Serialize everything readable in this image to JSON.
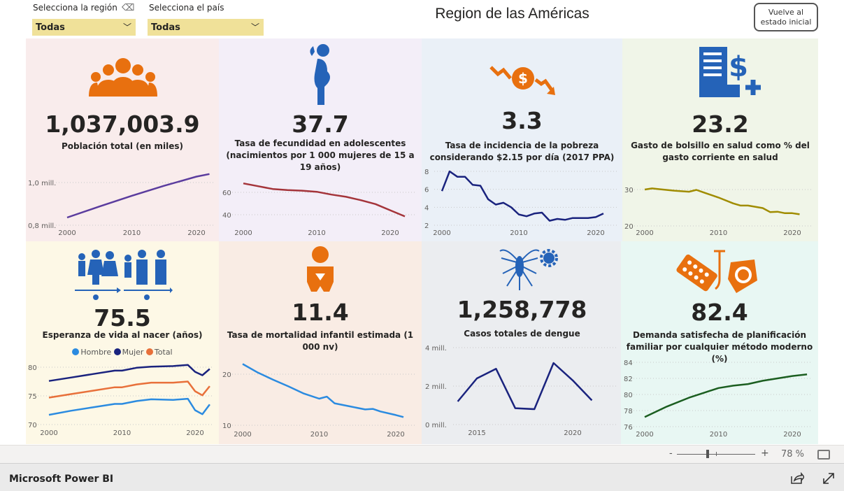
{
  "header": {
    "region_filter": {
      "label": "Selecciona la región",
      "value": "Todas"
    },
    "country_filter": {
      "label": "Selecciona el país",
      "value": "Todas"
    },
    "title": "Region de las Américas",
    "reset_button": "Vuelve al estado inicial"
  },
  "tiles": [
    {
      "value": "1,037,003.9",
      "label": "Población total (en miles)",
      "color": "#f9ecec",
      "icon": "people-group-icon"
    },
    {
      "value": "37.7",
      "label": "Tasa de fecundidad en adolescentes (nacimientos por 1 000 mujeres de 15 a 19 años)",
      "color": "#f3eef8",
      "icon": "pregnant-woman-icon"
    },
    {
      "value": "3.3",
      "label": "Tasa de incidencia de la pobreza considerando $2.15 por día (2017 PPA)",
      "color": "#eaf0f7",
      "icon": "money-down-icon"
    },
    {
      "value": "23.2",
      "label": "Gasto de bolsillo en salud como % del gasto corriente en salud",
      "color": "#f0f5e8",
      "icon": "health-bill-icon"
    },
    {
      "value": "75.5",
      "label": "Esperanza de vida al nacer (años)",
      "color": "#fdf8e6",
      "icon": "life-stages-icon"
    },
    {
      "value": "11.4",
      "label": "Tasa de mortalidad infantil estimada (1 000 nv)",
      "color": "#f9ece4",
      "icon": "baby-icon"
    },
    {
      "value": "1,258,778",
      "label": "Casos totales de dengue",
      "color": "#ebedf0",
      "icon": "mosquito-icon"
    },
    {
      "value": "82.4",
      "label": "Demanda satisfecha de planificación familiar por cualquier método moderno (%)",
      "color": "#e8f7f3",
      "icon": "contraceptives-icon"
    }
  ],
  "legend": [
    {
      "name": "Hombre",
      "color": "#2b8be0"
    },
    {
      "name": "Mujer",
      "color": "#1a237e"
    },
    {
      "name": "Total",
      "color": "#e8703a"
    }
  ],
  "chart_data": [
    {
      "type": "line",
      "id": "poblacion",
      "xticks": [
        "2000",
        "2010",
        "2020"
      ],
      "yticks": [
        {
          "v": 1.0,
          "t": "1,0 mill."
        },
        {
          "v": 0.8,
          "t": "0,8 mill."
        }
      ],
      "series": [
        {
          "name": "Población",
          "color": "#5b3c9e",
          "x": [
            2000,
            2005,
            2010,
            2015,
            2020,
            2022
          ],
          "y": [
            0.836,
            0.888,
            0.938,
            0.985,
            1.028,
            1.04
          ]
        }
      ]
    },
    {
      "type": "line",
      "id": "fecundidad",
      "xticks": [
        "2000",
        "2010",
        "2020"
      ],
      "yticks": [
        {
          "v": 60,
          "t": "60"
        },
        {
          "v": 40,
          "t": "40"
        }
      ],
      "series": [
        {
          "name": "Fecundidad",
          "color": "#a4343a",
          "x": [
            2000,
            2002,
            2004,
            2006,
            2008,
            2010,
            2012,
            2014,
            2016,
            2018,
            2020,
            2022
          ],
          "y": [
            68,
            65.5,
            63,
            62,
            61.5,
            60.5,
            58,
            56,
            53,
            49.5,
            44,
            38.5
          ]
        }
      ]
    },
    {
      "type": "line",
      "id": "pobreza",
      "xticks": [
        "2000",
        "2010",
        "2020"
      ],
      "yticks": [
        {
          "v": 8,
          "t": "8"
        },
        {
          "v": 6,
          "t": "6"
        },
        {
          "v": 4,
          "t": "4"
        },
        {
          "v": 2,
          "t": "2"
        }
      ],
      "series": [
        {
          "name": "Pobreza",
          "color": "#1a237e",
          "x": [
            2000,
            2001,
            2002,
            2003,
            2004,
            2005,
            2006,
            2007,
            2008,
            2009,
            2010,
            2011,
            2012,
            2013,
            2014,
            2015,
            2016,
            2017,
            2018,
            2019,
            2020,
            2021
          ],
          "y": [
            5.8,
            8,
            7.4,
            7.4,
            6.5,
            6.4,
            4.9,
            4.3,
            4.5,
            4.0,
            3.2,
            3.0,
            3.3,
            3.4,
            2.5,
            2.7,
            2.6,
            2.8,
            2.8,
            2.8,
            2.9,
            3.3
          ]
        }
      ]
    },
    {
      "type": "line",
      "id": "gasto",
      "xticks": [
        "2000",
        "2010",
        "2020"
      ],
      "yticks": [
        {
          "v": 30,
          "t": "30"
        },
        {
          "v": 20,
          "t": "20"
        }
      ],
      "series": [
        {
          "name": "Gasto",
          "color": "#a08c00",
          "x": [
            2000,
            2001,
            2002,
            2004,
            2006,
            2007,
            2008,
            2010,
            2012,
            2013,
            2014,
            2016,
            2017,
            2018,
            2019,
            2020,
            2021
          ],
          "y": [
            30,
            30.3,
            30.1,
            29.7,
            29.4,
            29.9,
            29.2,
            27.8,
            26.2,
            25.6,
            25.6,
            24.9,
            23.8,
            23.9,
            23.5,
            23.5,
            23.2
          ]
        }
      ]
    },
    {
      "type": "line",
      "id": "esperanza",
      "xticks": [
        "2000",
        "2010",
        "2020"
      ],
      "yticks": [
        {
          "v": 80,
          "t": "80"
        },
        {
          "v": 75,
          "t": "75"
        },
        {
          "v": 70,
          "t": "70"
        }
      ],
      "series": [
        {
          "name": "Mujer",
          "color": "#1a237e",
          "x": [
            2000,
            2003,
            2006,
            2009,
            2010,
            2012,
            2014,
            2017,
            2019,
            2020,
            2021,
            2022
          ],
          "y": [
            77.6,
            78.2,
            78.8,
            79.4,
            79.4,
            79.9,
            80.1,
            80.2,
            80.4,
            79.2,
            78.6,
            79.7
          ]
        },
        {
          "name": "Total",
          "color": "#e8703a",
          "x": [
            2000,
            2003,
            2006,
            2009,
            2010,
            2012,
            2014,
            2017,
            2019,
            2020,
            2021,
            2022
          ],
          "y": [
            74.7,
            75.3,
            75.9,
            76.5,
            76.5,
            77,
            77.3,
            77.3,
            77.5,
            75.8,
            75.1,
            76.7
          ]
        },
        {
          "name": "Hombre",
          "color": "#2b8be0",
          "x": [
            2000,
            2003,
            2006,
            2009,
            2010,
            2012,
            2014,
            2017,
            2019,
            2020,
            2021,
            2022
          ],
          "y": [
            71.7,
            72.4,
            73,
            73.6,
            73.6,
            74.1,
            74.4,
            74.3,
            74.5,
            72.5,
            71.8,
            73.5
          ]
        }
      ]
    },
    {
      "type": "line",
      "id": "mortalidad",
      "xticks": [
        "2000",
        "2010",
        "2020"
      ],
      "yticks": [
        {
          "v": 20,
          "t": "20"
        },
        {
          "v": 10,
          "t": "10"
        }
      ],
      "series": [
        {
          "name": "Mortalidad",
          "color": "#2b8be0",
          "x": [
            2000,
            2002,
            2004,
            2006,
            2008,
            2010,
            2011,
            2012,
            2014,
            2016,
            2017,
            2018,
            2020,
            2021
          ],
          "y": [
            22,
            20.3,
            18.9,
            17.6,
            16.2,
            15.2,
            15.6,
            14.3,
            13.7,
            13.1,
            13.2,
            12.7,
            12,
            11.6
          ]
        }
      ]
    },
    {
      "type": "line",
      "id": "dengue",
      "xticks": [
        "2015",
        "2020"
      ],
      "yticks": [
        {
          "v": 4,
          "t": "4 mill."
        },
        {
          "v": 2,
          "t": "2 mill."
        },
        {
          "v": 0,
          "t": "0 mill."
        }
      ],
      "series": [
        {
          "name": "Dengue",
          "color": "#1a237e",
          "x": [
            2014,
            2015,
            2016,
            2017,
            2018,
            2019,
            2020,
            2021
          ],
          "y": [
            1.2,
            2.4,
            2.9,
            0.85,
            0.8,
            3.2,
            2.3,
            1.26
          ]
        }
      ]
    },
    {
      "type": "line",
      "id": "planificacion",
      "xticks": [
        "2000",
        "2010",
        "2020"
      ],
      "yticks": [
        {
          "v": 84,
          "t": "84"
        },
        {
          "v": 82,
          "t": "82"
        },
        {
          "v": 80,
          "t": "80"
        },
        {
          "v": 78,
          "t": "78"
        },
        {
          "v": 76,
          "t": "76"
        }
      ],
      "series": [
        {
          "name": "Planificación",
          "color": "#1b5e20",
          "x": [
            2000,
            2003,
            2006,
            2008,
            2010,
            2012,
            2014,
            2016,
            2018,
            2020,
            2022
          ],
          "y": [
            77.2,
            78.5,
            79.6,
            80.2,
            80.8,
            81.1,
            81.3,
            81.7,
            82,
            82.3,
            82.5
          ]
        }
      ]
    }
  ],
  "zoom": {
    "minus": "-",
    "plus": "+",
    "level": "78 %",
    "value": 78
  },
  "footer": {
    "brand": "Microsoft Power BI"
  }
}
